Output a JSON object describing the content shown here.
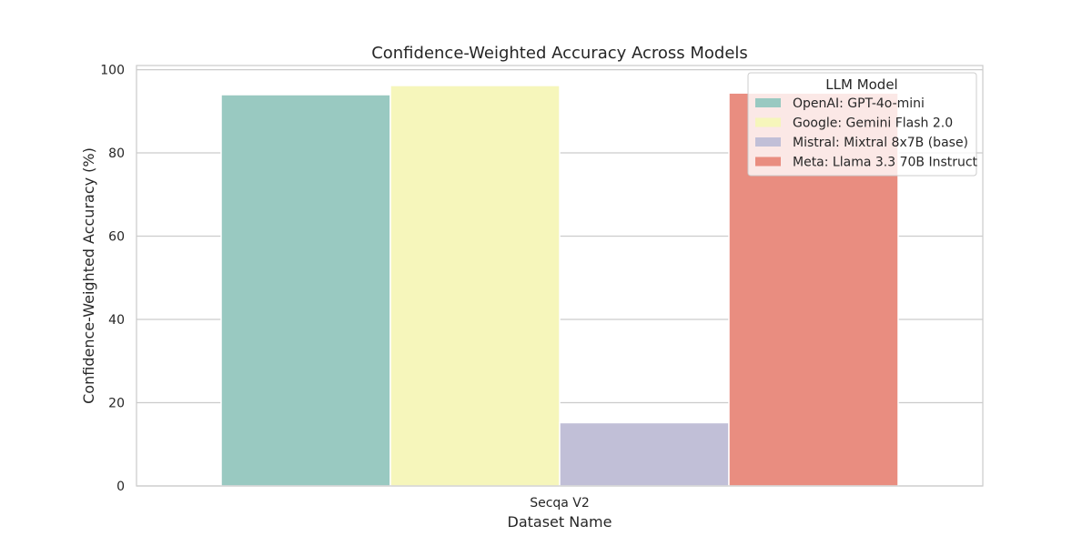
{
  "chart_data": {
    "type": "bar",
    "title": "Confidence-Weighted Accuracy Across Models",
    "xlabel": "Dataset Name",
    "ylabel": "Confidence-Weighted Accuracy (%)",
    "categories": [
      "Secqa V2"
    ],
    "ylim": [
      0,
      101
    ],
    "yticks": [
      0,
      20,
      40,
      60,
      80,
      100
    ],
    "grid": "horizontal",
    "legend": {
      "title": "LLM Model",
      "placement": "top-right"
    },
    "series": [
      {
        "name": "OpenAI: GPT-4o-mini",
        "values": [
          94.0
        ],
        "color": "#99c9c1"
      },
      {
        "name": "Google: Gemini Flash 2.0",
        "values": [
          96.2
        ],
        "color": "#f6f6bb"
      },
      {
        "name": "Mistral: Mixtral 8x7B (base)",
        "values": [
          15.2
        ],
        "color": "#c1bfd7"
      },
      {
        "name": "Meta: Llama 3.3 70B Instruct",
        "values": [
          94.4
        ],
        "color": "#e98d80"
      }
    ]
  }
}
